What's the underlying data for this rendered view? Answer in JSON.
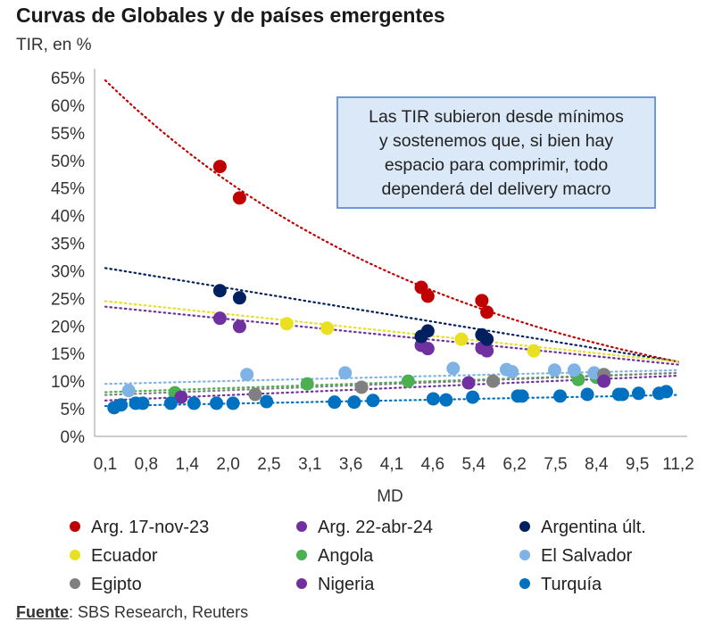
{
  "title": "Curvas de Globales y de países emergentes",
  "subtitle": "TIR, en %",
  "note": [
    "Las TIR subieron desde mínimos",
    "y sostenemos que, si bien hay",
    "espacio para comprimir, todo",
    "dependerá del delivery macro"
  ],
  "source_label": "Fuente",
  "source_text": ": SBS Research, Reuters",
  "chart_data": {
    "type": "scatter",
    "title": "Curvas de Globales y de países emergentes",
    "xlabel": "MD",
    "ylabel": "TIR, en %",
    "x_ticks": [
      "0,1",
      "0,8",
      "1,4",
      "2,0",
      "2,5",
      "3,1",
      "3,6",
      "4,1",
      "4,6",
      "5,4",
      "6,2",
      "7,5",
      "8,4",
      "9,5",
      "11,2"
    ],
    "x_tick_values": [
      0.1,
      0.8,
      1.4,
      2.0,
      2.5,
      3.1,
      3.6,
      4.1,
      4.6,
      5.4,
      6.2,
      7.5,
      8.4,
      9.5,
      11.2
    ],
    "y_ticks": [
      "0%",
      "5%",
      "10%",
      "15%",
      "20%",
      "25%",
      "30%",
      "35%",
      "40%",
      "45%",
      "50%",
      "55%",
      "60%",
      "65%"
    ],
    "ylim": [
      0,
      65
    ],
    "legend_position": "bottom",
    "series": [
      {
        "name": "Arg. 17-nov-23",
        "color": "#c00000",
        "trend": "exp",
        "trend_ends": [
          64.5,
          13.5
        ],
        "points": [
          [
            1.88,
            48.9
          ],
          [
            2.14,
            43.2
          ],
          [
            4.46,
            27.0
          ],
          [
            4.54,
            25.4
          ],
          [
            5.56,
            24.6
          ],
          [
            5.66,
            22.5
          ]
        ]
      },
      {
        "name": "Arg. 22-abr-24",
        "color": "#7030a0",
        "trend": "linear",
        "trend_ends": [
          23.5,
          13.0
        ],
        "points": [
          [
            1.88,
            21.4
          ],
          [
            2.14,
            19.9
          ],
          [
            4.46,
            16.5
          ],
          [
            4.54,
            15.9
          ],
          [
            5.56,
            16.0
          ],
          [
            5.66,
            15.5
          ]
        ]
      },
      {
        "name": "Argentina últ.",
        "color": "#002060",
        "trend": "linear",
        "trend_ends": [
          30.5,
          13.5
        ],
        "points": [
          [
            1.88,
            26.4
          ],
          [
            2.14,
            25.1
          ],
          [
            4.46,
            18.1
          ],
          [
            4.54,
            19.1
          ],
          [
            5.56,
            18.4
          ],
          [
            5.66,
            17.6
          ]
        ]
      },
      {
        "name": "Ecuador",
        "color": "#e8e020",
        "trend": "linear",
        "trend_ends": [
          24.5,
          13.5
        ],
        "points": [
          [
            2.76,
            20.4
          ],
          [
            3.31,
            19.6
          ],
          [
            5.16,
            17.6
          ],
          [
            6.81,
            15.5
          ]
        ]
      },
      {
        "name": "Angola",
        "color": "#4caf50",
        "trend": "linear",
        "trend_ends": [
          8.0,
          11.5
        ],
        "points": [
          [
            1.22,
            7.9
          ],
          [
            3.06,
            9.5
          ],
          [
            4.3,
            10.0
          ],
          [
            8.0,
            10.3
          ],
          [
            8.4,
            10.7
          ]
        ]
      },
      {
        "name": "El Salvador",
        "color": "#7fb2e5",
        "trend": "linear",
        "trend_ends": [
          9.5,
          12.0
        ],
        "points": [
          [
            0.5,
            8.3
          ],
          [
            2.23,
            11.2
          ],
          [
            3.53,
            11.5
          ],
          [
            5.0,
            12.3
          ],
          [
            6.04,
            12.1
          ],
          [
            6.15,
            11.7
          ],
          [
            7.47,
            12.0
          ],
          [
            7.91,
            12.0
          ],
          [
            8.35,
            11.5
          ]
        ]
      },
      {
        "name": "Egipto",
        "color": "#808080",
        "trend": "linear",
        "trend_ends": [
          7.5,
          11.5
        ],
        "points": [
          [
            2.33,
            7.6
          ],
          [
            3.73,
            8.9
          ],
          [
            5.78,
            10.0
          ],
          [
            8.6,
            11.2
          ]
        ]
      },
      {
        "name": "Nigeria",
        "color": "#7030a0",
        "trend": "linear",
        "trend_ends": [
          6.5,
          11.0
        ],
        "points": [
          [
            1.31,
            7.1
          ],
          [
            5.3,
            9.7
          ],
          [
            8.6,
            10.0
          ]
        ]
      },
      {
        "name": "Turquía",
        "color": "#0070c0",
        "trend": "linear",
        "trend_ends": [
          5.5,
          7.5
        ],
        "points": [
          [
            0.25,
            5.2
          ],
          [
            0.37,
            5.7
          ],
          [
            0.62,
            6.0
          ],
          [
            0.74,
            6.0
          ],
          [
            1.16,
            6.0
          ],
          [
            1.5,
            6.0
          ],
          [
            1.83,
            6.0
          ],
          [
            2.06,
            6.0
          ],
          [
            2.47,
            6.3
          ],
          [
            3.4,
            6.2
          ],
          [
            3.64,
            6.2
          ],
          [
            3.87,
            6.5
          ],
          [
            4.61,
            6.8
          ],
          [
            4.86,
            6.6
          ],
          [
            5.38,
            7.1
          ],
          [
            6.3,
            7.3
          ],
          [
            6.44,
            7.3
          ],
          [
            7.6,
            7.3
          ],
          [
            8.2,
            7.6
          ],
          [
            9.0,
            7.6
          ],
          [
            9.1,
            7.6
          ],
          [
            9.55,
            7.8
          ],
          [
            10.4,
            7.8
          ],
          [
            10.7,
            8.1
          ]
        ]
      }
    ]
  }
}
